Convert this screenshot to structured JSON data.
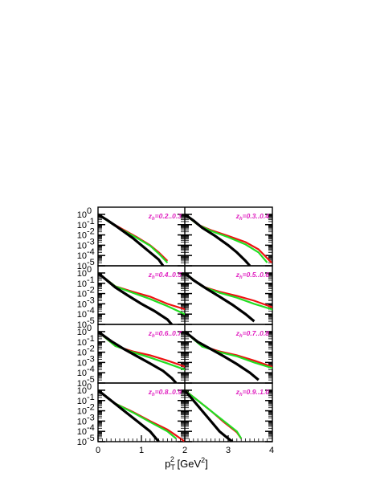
{
  "chart_data": {
    "type": "line",
    "xlabel": "p_T^2 [GeV^2]",
    "x_ticks": [
      "0",
      "1",
      "2",
      "3",
      "4"
    ],
    "y_ticks": [
      "10^0",
      "10^-1",
      "10^-2",
      "10^-3",
      "10^-4",
      "10^-5"
    ],
    "ylog": true,
    "colors": {
      "black": "#000000",
      "red": "#ee1111",
      "green": "#22dd22",
      "label": "#e020c0"
    },
    "panels": [
      {
        "label": "z_h=0.2..0.3",
        "series": [
          {
            "color": "black",
            "x": [
              0.0,
              0.2,
              0.4,
              0.6,
              0.8,
              1.0,
              1.2,
              1.4,
              1.5
            ],
            "y": [
              1.0,
              0.3,
              0.08,
              0.02,
              0.005,
              0.001,
              0.0002,
              4e-05,
              1e-05
            ]
          },
          {
            "color": "red",
            "x": [
              0.0,
              0.3,
              0.6,
              0.9,
              1.2,
              1.4,
              1.6
            ],
            "y": [
              1.0,
              0.15,
              0.03,
              0.006,
              0.001,
              0.0002,
              3e-05
            ]
          },
          {
            "color": "green",
            "x": [
              0.0,
              0.3,
              0.6,
              0.9,
              1.2,
              1.4,
              1.6
            ],
            "y": [
              1.0,
              0.14,
              0.025,
              0.005,
              0.0009,
              0.00015,
              2e-05
            ]
          }
        ]
      },
      {
        "label": "z_h=0.3..0.4",
        "series": [
          {
            "color": "black",
            "x": [
              0.0,
              0.2,
              0.4,
              0.7,
              1.0,
              1.2,
              1.4,
              1.5
            ],
            "y": [
              1.0,
              0.25,
              0.05,
              0.008,
              0.001,
              0.0002,
              3e-05,
              1e-05
            ]
          },
          {
            "color": "red",
            "x": [
              0.0,
              0.3,
              0.6,
              1.0,
              1.4,
              1.7,
              2.0
            ],
            "y": [
              1.0,
              0.1,
              0.03,
              0.008,
              0.002,
              0.0004,
              2e-05
            ]
          },
          {
            "color": "green",
            "x": [
              0.0,
              0.3,
              0.6,
              1.0,
              1.4,
              1.7,
              1.9
            ],
            "y": [
              1.0,
              0.1,
              0.025,
              0.006,
              0.0012,
              0.0002,
              2e-05
            ]
          }
        ]
      },
      {
        "label": "z_h=0.4..0.5",
        "series": [
          {
            "color": "black",
            "x": [
              0.0,
              0.2,
              0.4,
              0.7,
              1.0,
              1.3,
              1.6,
              1.7
            ],
            "y": [
              1.0,
              0.2,
              0.04,
              0.006,
              0.001,
              0.0002,
              3e-05,
              1e-05
            ]
          },
          {
            "color": "red",
            "x": [
              0.0,
              0.4,
              0.8,
              1.2,
              1.6,
              2.0,
              2.3,
              2.5
            ],
            "y": [
              1.0,
              0.05,
              0.015,
              0.005,
              0.001,
              0.0003,
              6e-05,
              2e-05
            ]
          },
          {
            "color": "green",
            "x": [
              0.0,
              0.4,
              0.8,
              1.2,
              1.6,
              2.0,
              2.3
            ],
            "y": [
              1.0,
              0.05,
              0.012,
              0.003,
              0.0006,
              0.0001,
              2e-05
            ]
          }
        ]
      },
      {
        "label": "z_h=0.5..0.6",
        "series": [
          {
            "color": "black",
            "x": [
              0.0,
              0.2,
              0.5,
              0.8,
              1.1,
              1.4,
              1.6
            ],
            "y": [
              1.0,
              0.2,
              0.03,
              0.005,
              0.0008,
              0.0001,
              2e-05
            ]
          },
          {
            "color": "red",
            "x": [
              0.0,
              0.4,
              0.8,
              1.2,
              1.6,
              2.0,
              2.3,
              2.5
            ],
            "y": [
              1.0,
              0.05,
              0.015,
              0.006,
              0.002,
              0.0005,
              0.0001,
              2e-05
            ]
          },
          {
            "color": "green",
            "x": [
              0.0,
              0.4,
              0.8,
              1.2,
              1.6,
              2.0,
              2.3,
              2.5
            ],
            "y": [
              1.0,
              0.05,
              0.012,
              0.004,
              0.001,
              0.0003,
              6e-05,
              2e-05
            ]
          }
        ]
      },
      {
        "label": "z_h=0.6..0.7",
        "series": [
          {
            "color": "black",
            "x": [
              0.0,
              0.3,
              0.6,
              0.9,
              1.2,
              1.5,
              1.7,
              1.8
            ],
            "y": [
              1.0,
              0.12,
              0.02,
              0.004,
              0.0008,
              0.00015,
              3e-05,
              1e-05
            ]
          },
          {
            "color": "red",
            "x": [
              0.0,
              0.4,
              0.8,
              1.2,
              1.6,
              2.0,
              2.4,
              2.7
            ],
            "y": [
              1.0,
              0.04,
              0.012,
              0.005,
              0.0015,
              0.0004,
              0.0001,
              2e-05
            ]
          },
          {
            "color": "green",
            "x": [
              0.0,
              0.4,
              0.8,
              1.2,
              1.6,
              2.0,
              2.3
            ],
            "y": [
              1.0,
              0.04,
              0.01,
              0.003,
              0.0008,
              0.0002,
              3e-05
            ]
          }
        ]
      },
      {
        "label": "z_h=0.7..0.8",
        "series": [
          {
            "color": "black",
            "x": [
              0.0,
              0.3,
              0.6,
              0.9,
              1.2,
              1.5,
              1.7
            ],
            "y": [
              1.0,
              0.1,
              0.02,
              0.004,
              0.0007,
              0.0001,
              2e-05
            ]
          },
          {
            "color": "red",
            "x": [
              0.0,
              0.4,
              0.8,
              1.2,
              1.6,
              2.0,
              2.4,
              2.6
            ],
            "y": [
              1.0,
              0.04,
              0.012,
              0.005,
              0.0015,
              0.0004,
              0.0001,
              3e-05
            ]
          },
          {
            "color": "green",
            "x": [
              0.0,
              0.4,
              0.8,
              1.2,
              1.6,
              2.0,
              2.4,
              2.6
            ],
            "y": [
              1.0,
              0.035,
              0.01,
              0.004,
              0.001,
              0.0003,
              6e-05,
              2e-05
            ]
          }
        ]
      },
      {
        "label": "z_h=0.8..0.9",
        "series": [
          {
            "color": "black",
            "x": [
              0.0,
              0.3,
              0.6,
              0.9,
              1.2,
              1.4
            ],
            "y": [
              1.0,
              0.1,
              0.01,
              0.001,
              0.0001,
              1e-05
            ]
          },
          {
            "color": "red",
            "x": [
              0.0,
              0.4,
              0.8,
              1.2,
              1.6,
              1.8,
              2.0
            ],
            "y": [
              1.0,
              0.05,
              0.008,
              0.001,
              0.00015,
              4e-05,
              1e-05
            ]
          },
          {
            "color": "green",
            "x": [
              0.0,
              0.4,
              0.8,
              1.2,
              1.6,
              1.8
            ],
            "y": [
              1.0,
              0.05,
              0.007,
              0.0008,
              0.0001,
              2e-05
            ]
          }
        ]
      },
      {
        "label": "z_h=0.9..1.0",
        "series": [
          {
            "color": "black",
            "x": [
              0.0,
              0.2,
              0.4,
              0.6,
              0.8,
              1.0,
              1.1
            ],
            "y": [
              1.0,
              0.1,
              0.01,
              0.001,
              0.0001,
              2e-05,
              1e-05
            ]
          },
          {
            "color": "red",
            "x": [
              0.0,
              0.3,
              0.6,
              0.9,
              1.2,
              1.3
            ],
            "y": [
              1.0,
              0.1,
              0.01,
              0.0008,
              8e-05,
              2e-05
            ]
          },
          {
            "color": "green",
            "x": [
              0.0,
              0.3,
              0.6,
              0.9,
              1.2,
              1.3
            ],
            "y": [
              1.0,
              0.1,
              0.01,
              0.001,
              0.0001,
              2e-05
            ]
          }
        ]
      }
    ]
  }
}
